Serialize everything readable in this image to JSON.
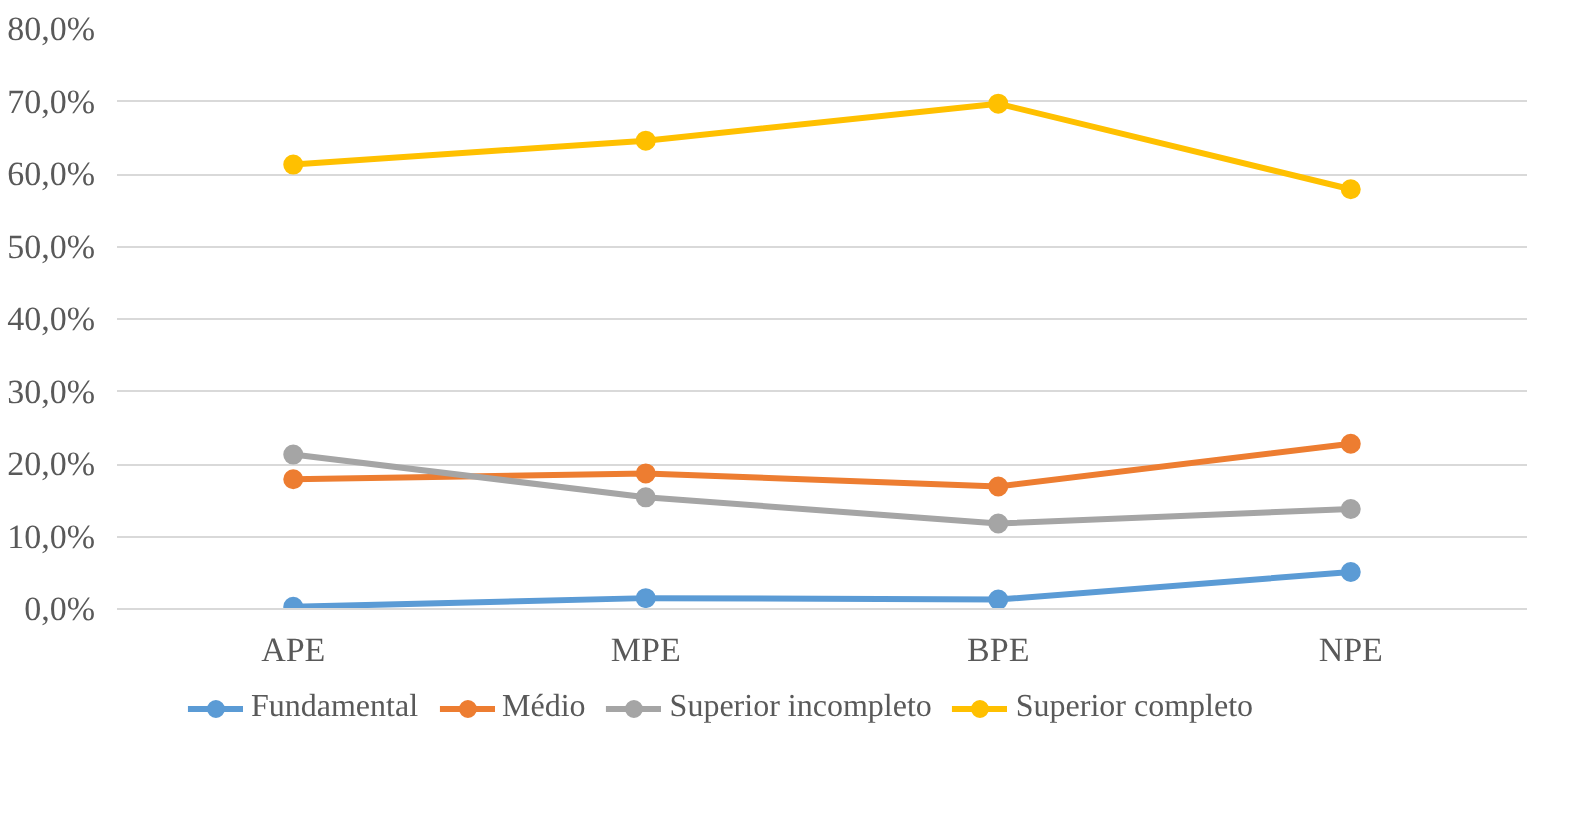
{
  "chart_data": {
    "type": "line",
    "categories": [
      "APE",
      "MPE",
      "BPE",
      "NPE"
    ],
    "series": [
      {
        "name": "Fundamental",
        "color": "#5b9bd5",
        "values": [
          0.3,
          1.5,
          1.3,
          5.1
        ]
      },
      {
        "name": "Médio",
        "color": "#ed7d31",
        "values": [
          17.9,
          18.7,
          16.9,
          22.8
        ]
      },
      {
        "name": "Superior incompleto",
        "color": "#a5a5a5",
        "values": [
          21.3,
          15.4,
          11.8,
          13.8
        ]
      },
      {
        "name": "Superior completo",
        "color": "#ffc000",
        "values": [
          61.3,
          64.6,
          69.7,
          57.9
        ]
      }
    ],
    "ylim": [
      0,
      80
    ],
    "yticks": [
      {
        "value": 0,
        "label": "0,0%"
      },
      {
        "value": 10,
        "label": "10,0%"
      },
      {
        "value": 20,
        "label": "20,0%"
      },
      {
        "value": 30,
        "label": "30,0%"
      },
      {
        "value": 40,
        "label": "40,0%"
      },
      {
        "value": 50,
        "label": "50,0%"
      },
      {
        "value": 60,
        "label": "60,0%"
      },
      {
        "value": 70,
        "label": "70,0%"
      },
      {
        "value": 80,
        "label": "80,0%"
      }
    ],
    "grid": "y",
    "legend": "bottom",
    "marker": "circle",
    "line_style": "solid"
  }
}
